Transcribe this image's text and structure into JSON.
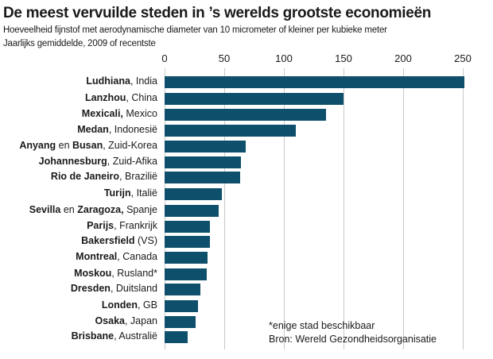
{
  "header": {
    "title": "De meest vervuilde steden in ’s werelds grootste economieën",
    "subtitle_1": "Hoeveelheid fijnstof met aerodynamische diameter van 10 micrometer of kleiner per kubieke meter",
    "subtitle_2": "Jaarlijks gemiddelde, 2009 of recentste"
  },
  "axis": {
    "ticks": [
      "0",
      "50",
      "100",
      "150",
      "200",
      "250"
    ]
  },
  "rows": [
    {
      "city": "Ludhiana",
      "sep": ", ",
      "country": "India",
      "value": 251
    },
    {
      "city": "Lanzhou",
      "sep": ", ",
      "country": "China",
      "value": 150
    },
    {
      "city": "Mexicali,",
      "sep": " ",
      "country": "Mexico",
      "value": 135
    },
    {
      "city": "Medan",
      "sep": ", ",
      "country": "Indonesië",
      "value": 110
    },
    {
      "city": "Anyang",
      "mid": " en ",
      "city2": "Busan",
      "sep": ", ",
      "country": "Zuid-Korea",
      "value": 68
    },
    {
      "city": "Johannesburg",
      "sep": ", ",
      "country": "Zuid-Afika",
      "value": 64
    },
    {
      "city": "Rio de Janeiro",
      "sep": ", ",
      "country": "Brazilië",
      "value": 63
    },
    {
      "city": "Turijn",
      "sep": ", ",
      "country": "Italië",
      "value": 48
    },
    {
      "city": "Sevilla",
      "mid": " en ",
      "city2": "Zaragoza,",
      "sep": " ",
      "country": "Spanje",
      "value": 45
    },
    {
      "city": "Parijs",
      "sep": ", ",
      "country": "Frankrijk",
      "value": 38
    },
    {
      "city": "Bakersfield",
      "sep": " ",
      "country": "(VS)",
      "value": 38
    },
    {
      "city": "Montreal",
      "sep": ", ",
      "country": "Canada",
      "value": 36
    },
    {
      "city": "Moskou",
      "sep": ", ",
      "country": "Rusland*",
      "value": 35
    },
    {
      "city": "Dresden",
      "sep": ", ",
      "country": "Duitsland",
      "value": 30
    },
    {
      "city": "Londen",
      "sep": ", ",
      "country": "GB",
      "value": 28
    },
    {
      "city": "Osaka",
      "sep": ", ",
      "country": "Japan",
      "value": 26
    },
    {
      "city": "Brisbane",
      "sep": ", ",
      "country": "Australië",
      "value": 19
    }
  ],
  "footnotes": {
    "note": "*enige stad beschikbaar",
    "source": "Bron: Wereld Gezondheidsorganisatie"
  },
  "colors": {
    "bar": "#0e4f6c",
    "grid": "#c9c9c9"
  },
  "chart_data": {
    "type": "bar",
    "orientation": "horizontal",
    "title": "De meest vervuilde steden in ’s werelds grootste economieën",
    "subtitle": "Hoeveelheid fijnstof met aerodynamische diameter van 10 micrometer of kleiner per kubieke meter; Jaarlijks gemiddelde, 2009 of recentste",
    "categories": [
      "Ludhiana, India",
      "Lanzhou, China",
      "Mexicali, Mexico",
      "Medan, Indonesië",
      "Anyang en Busan, Zuid-Korea",
      "Johannesburg, Zuid-Afika",
      "Rio de Janeiro, Brazilië",
      "Turijn, Italië",
      "Sevilla en Zaragoza, Spanje",
      "Parijs, Frankrijk",
      "Bakersfield (VS)",
      "Montreal, Canada",
      "Moskou, Rusland*",
      "Dresden, Duitsland",
      "Londen, GB",
      "Osaka, Japan",
      "Brisbane, Australië"
    ],
    "values": [
      251,
      150,
      135,
      110,
      68,
      64,
      63,
      48,
      45,
      38,
      38,
      36,
      35,
      30,
      28,
      26,
      19
    ],
    "xlabel": "",
    "ylabel": "",
    "xlim": [
      0,
      250
    ],
    "xticks": [
      0,
      50,
      100,
      150,
      200,
      250
    ],
    "grid": true,
    "legend": null,
    "annotations": [
      "*enige stad beschikbaar",
      "Bron: Wereld Gezondheidsorganisatie"
    ]
  }
}
